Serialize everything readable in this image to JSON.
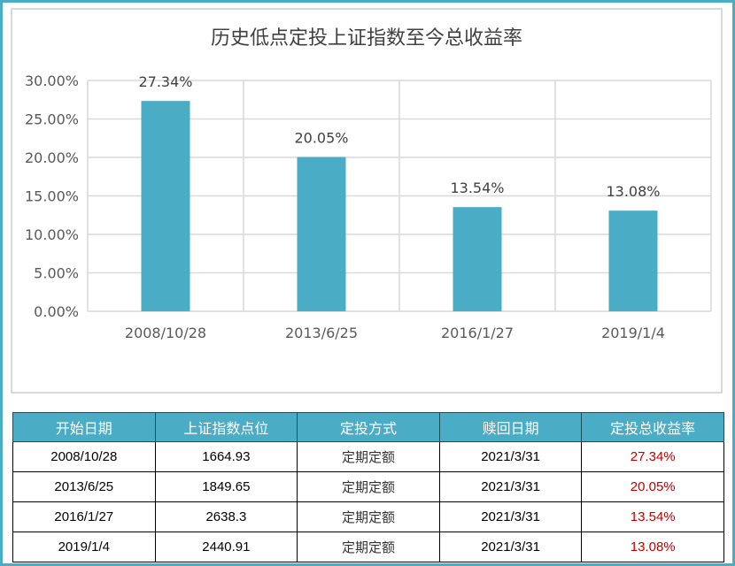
{
  "chart_data": {
    "type": "bar",
    "title": "历史低点定投上证指数至今总收益率",
    "categories": [
      "2008/10/28",
      "2013/6/25",
      "2016/1/27",
      "2019/1/4"
    ],
    "values": [
      27.34,
      20.05,
      13.54,
      13.08
    ],
    "data_labels": [
      "27.34%",
      "20.05%",
      "13.54%",
      "13.08%"
    ],
    "y_tick_labels": [
      "0.00%",
      "5.00%",
      "10.00%",
      "15.00%",
      "20.00%",
      "25.00%",
      "30.00%"
    ],
    "ylim": [
      0,
      30
    ],
    "y_ticks": [
      0,
      5,
      10,
      15,
      20,
      25,
      30
    ],
    "grid": true,
    "bar_color": "#4bacc6"
  },
  "table": {
    "headers": [
      "开始日期",
      "上证指数点位",
      "定投方式",
      "赎回日期",
      "定投总收益率"
    ],
    "rows": [
      [
        "2008/10/28",
        "1664.93",
        "定期定额",
        "2021/3/31",
        "27.34%"
      ],
      [
        "2013/6/25",
        "1849.65",
        "定期定额",
        "2021/3/31",
        "20.05%"
      ],
      [
        "2016/1/27",
        "2638.3",
        "定期定额",
        "2021/3/31",
        "13.54%"
      ],
      [
        "2019/1/4",
        "2440.91",
        "定期定额",
        "2021/3/31",
        "13.08%"
      ]
    ]
  },
  "colors": {
    "accent": "#4bacc6",
    "rate_text": "#c00000"
  }
}
